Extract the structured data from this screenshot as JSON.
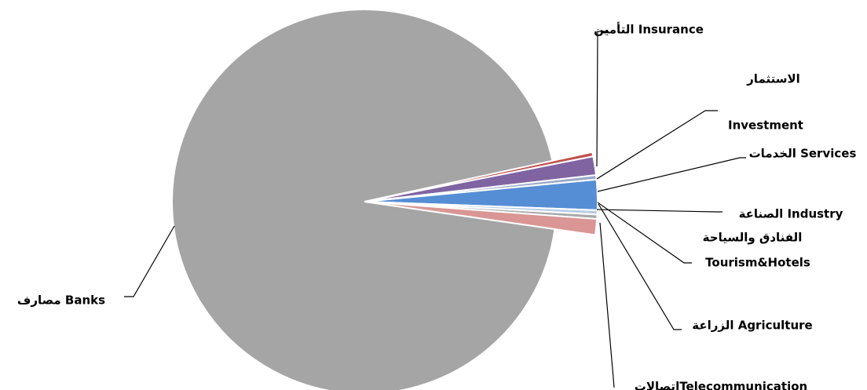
{
  "chart_data": {
    "type": "pie",
    "title": "",
    "legend": "none",
    "slices": [
      {
        "name": "Insurance",
        "label_lines": [
          "التأمين Insurance"
        ],
        "value": 0.3,
        "color": "#c0504d"
      },
      {
        "name": "Investment",
        "label_lines": [
          "الاستثمار",
          "Investment"
        ],
        "value": 1.3,
        "color": "#8064a2"
      },
      {
        "name": "Services",
        "label_lines": [
          "الخدمات Services"
        ],
        "value": 0.3,
        "color": "#9aa8c9"
      },
      {
        "name": "Industry",
        "label_lines": [
          "الصناعة Industry"
        ],
        "value": 2.1,
        "color": "#558ed5"
      },
      {
        "name": "Tourism&Hotels",
        "label_lines": [
          "الفنادق والسياحة",
          "Tourism&Hotels"
        ],
        "value": 0.3,
        "color": "#b9cde5"
      },
      {
        "name": "Agriculture",
        "label_lines": [
          "الزراعة Agriculture"
        ],
        "value": 0.3,
        "color": "#a9a9a9"
      },
      {
        "name": "Telecommunication",
        "label_lines": [
          "اتصالاتTelecommunication"
        ],
        "value": 1.1,
        "color": "#d99694"
      },
      {
        "name": "Banks",
        "label_lines": [
          "مصارف Banks"
        ],
        "value": 94.3,
        "color": "#a5a5a5"
      }
    ]
  }
}
